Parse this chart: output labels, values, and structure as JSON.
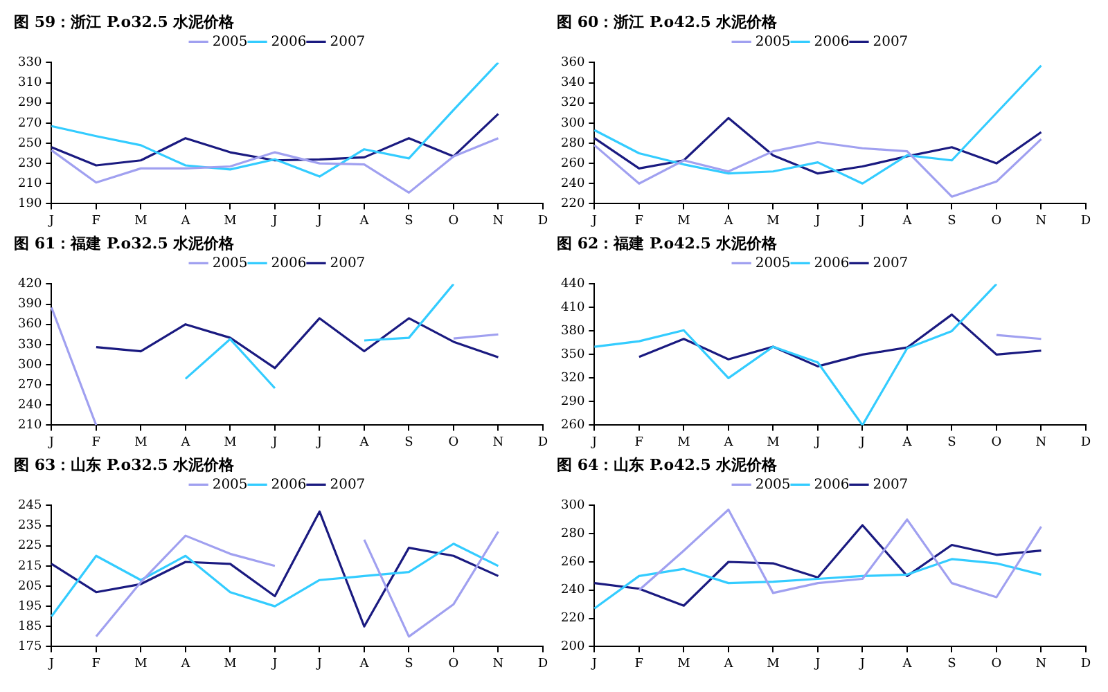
{
  "chart_data": [
    {
      "type": "line",
      "title": "图 59：浙江 P.o32.5 水泥价格",
      "categories": [
        "J",
        "F",
        "M",
        "A",
        "M",
        "J",
        "J",
        "A",
        "S",
        "O",
        "N",
        "D"
      ],
      "ylim": [
        190,
        330
      ],
      "yticks": [
        190,
        210,
        230,
        250,
        270,
        290,
        310,
        330
      ],
      "grid": false,
      "legend": "top",
      "marker": "none",
      "line_style": "solid",
      "series": [
        {
          "name": "2005",
          "color": "#a0a0f0",
          "values": [
            243,
            211,
            225,
            225,
            227,
            241,
            230,
            229,
            201,
            237,
            255,
            null
          ]
        },
        {
          "name": "2006",
          "color": "#33ccff",
          "values": [
            267,
            257,
            248,
            228,
            224,
            234,
            217,
            244,
            235,
            283,
            330,
            null
          ]
        },
        {
          "name": "2007",
          "color": "#1a1a80",
          "values": [
            246,
            228,
            233,
            255,
            241,
            233,
            234,
            236,
            255,
            237,
            279,
            null
          ]
        }
      ]
    },
    {
      "type": "line",
      "title": "图 60：浙江 P.o42.5 水泥价格",
      "categories": [
        "J",
        "F",
        "M",
        "A",
        "M",
        "J",
        "J",
        "A",
        "S",
        "O",
        "N",
        "D"
      ],
      "ylim": [
        220,
        360
      ],
      "yticks": [
        220,
        240,
        260,
        280,
        300,
        320,
        340,
        360
      ],
      "grid": false,
      "legend": "top",
      "marker": "none",
      "line_style": "solid",
      "series": [
        {
          "name": "2005",
          "color": "#a0a0f0",
          "values": [
            278,
            240,
            263,
            252,
            272,
            281,
            275,
            272,
            227,
            242,
            284,
            null
          ]
        },
        {
          "name": "2006",
          "color": "#33ccff",
          "values": [
            293,
            270,
            259,
            250,
            252,
            261,
            240,
            268,
            263,
            310,
            357,
            null
          ]
        },
        {
          "name": "2007",
          "color": "#1a1a80",
          "values": [
            285,
            255,
            263,
            305,
            268,
            250,
            257,
            267,
            276,
            260,
            291,
            null
          ]
        }
      ]
    },
    {
      "type": "line",
      "title": "图 61：福建 P.o32.5 水泥价格",
      "categories": [
        "J",
        "F",
        "M",
        "A",
        "M",
        "J",
        "J",
        "A",
        "S",
        "O",
        "N",
        "D"
      ],
      "ylim": [
        210,
        420
      ],
      "yticks": [
        210,
        240,
        270,
        300,
        330,
        360,
        390,
        420
      ],
      "grid": false,
      "legend": "top",
      "marker": "none",
      "line_style": "solid",
      "series": [
        {
          "name": "2005",
          "color": "#a0a0f0",
          "values": [
            385,
            210,
            null,
            null,
            null,
            null,
            null,
            null,
            null,
            339,
            345,
            null
          ]
        },
        {
          "name": "2006",
          "color": "#33ccff",
          "values": [
            null,
            null,
            null,
            279,
            338,
            265,
            null,
            336,
            340,
            420,
            null,
            null
          ]
        },
        {
          "name": "2007",
          "color": "#1a1a80",
          "values": [
            null,
            326,
            320,
            360,
            340,
            295,
            369,
            320,
            369,
            334,
            311,
            null
          ]
        }
      ]
    },
    {
      "type": "line",
      "title": "图 62：福建 P.o42.5 水泥价格",
      "categories": [
        "J",
        "F",
        "M",
        "A",
        "M",
        "J",
        "J",
        "A",
        "S",
        "O",
        "N",
        "D"
      ],
      "ylim": [
        260,
        440
      ],
      "yticks": [
        260,
        290,
        320,
        350,
        380,
        410,
        440
      ],
      "grid": false,
      "legend": "top",
      "marker": "none",
      "line_style": "solid",
      "series": [
        {
          "name": "2005",
          "color": "#a0a0f0",
          "values": [
            null,
            null,
            null,
            null,
            null,
            null,
            null,
            null,
            null,
            375,
            370,
            null
          ]
        },
        {
          "name": "2006",
          "color": "#33ccff",
          "values": [
            360,
            367,
            381,
            320,
            360,
            340,
            260,
            358,
            380,
            440,
            null,
            null
          ]
        },
        {
          "name": "2007",
          "color": "#1a1a80",
          "values": [
            null,
            347,
            370,
            344,
            360,
            335,
            350,
            359,
            401,
            350,
            355,
            null
          ]
        }
      ]
    },
    {
      "type": "line",
      "title": "图 63：山东 P.o32.5 水泥价格",
      "categories": [
        "J",
        "F",
        "M",
        "A",
        "M",
        "J",
        "J",
        "A",
        "S",
        "O",
        "N",
        "D"
      ],
      "ylim": [
        175,
        245
      ],
      "yticks": [
        175,
        185,
        195,
        205,
        215,
        225,
        235,
        245
      ],
      "grid": false,
      "legend": "top",
      "marker": "none",
      "line_style": "solid",
      "series": [
        {
          "name": "2005",
          "color": "#a0a0f0",
          "values": [
            null,
            180,
            207,
            230,
            221,
            215,
            null,
            228,
            180,
            196,
            232,
            null
          ]
        },
        {
          "name": "2006",
          "color": "#33ccff",
          "values": [
            190,
            220,
            208,
            220,
            202,
            195,
            208,
            210,
            212,
            226,
            215,
            null
          ]
        },
        {
          "name": "2007",
          "color": "#1a1a80",
          "values": [
            216,
            202,
            206,
            217,
            216,
            200,
            242,
            185,
            224,
            220,
            210,
            null
          ]
        }
      ]
    },
    {
      "type": "line",
      "title": "图 64：山东 P.o42.5 水泥价格",
      "categories": [
        "J",
        "F",
        "M",
        "A",
        "M",
        "J",
        "J",
        "A",
        "S",
        "O",
        "N",
        "D"
      ],
      "ylim": [
        200,
        300
      ],
      "yticks": [
        200,
        220,
        240,
        260,
        280,
        300
      ],
      "grid": false,
      "legend": "top",
      "marker": "none",
      "line_style": "solid",
      "series": [
        {
          "name": "2005",
          "color": "#a0a0f0",
          "values": [
            null,
            240,
            268,
            297,
            238,
            245,
            248,
            290,
            245,
            235,
            285,
            null
          ]
        },
        {
          "name": "2006",
          "color": "#33ccff",
          "values": [
            227,
            250,
            255,
            245,
            246,
            248,
            250,
            251,
            262,
            259,
            251,
            null
          ]
        },
        {
          "name": "2007",
          "color": "#1a1a80",
          "values": [
            245,
            241,
            229,
            260,
            259,
            249,
            286,
            250,
            272,
            265,
            268,
            null
          ]
        }
      ]
    }
  ]
}
